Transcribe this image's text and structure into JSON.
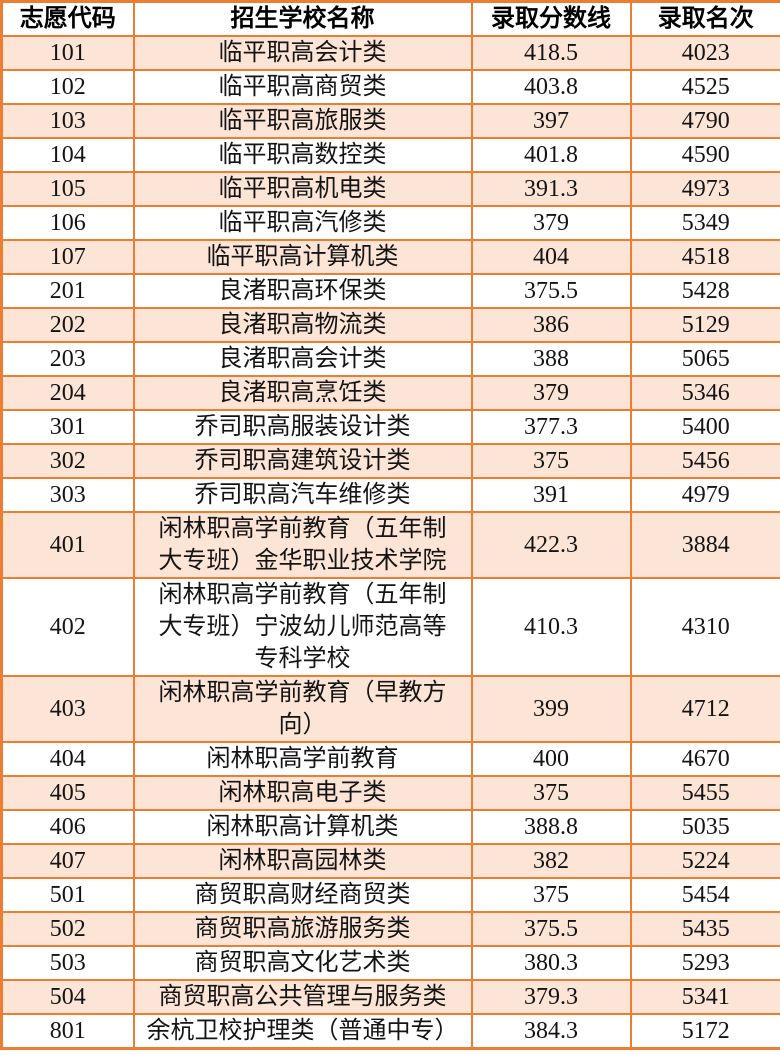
{
  "chart_data": {
    "type": "table",
    "headers": [
      "志愿代码",
      "招生学校名称",
      "录取分数线",
      "录取名次"
    ],
    "rows": [
      {
        "code": "101",
        "school": "临平职高会计类",
        "score": "418.5",
        "rank": "4023"
      },
      {
        "code": "102",
        "school": "临平职高商贸类",
        "score": "403.8",
        "rank": "4525"
      },
      {
        "code": "103",
        "school": "临平职高旅服类",
        "score": "397",
        "rank": "4790"
      },
      {
        "code": "104",
        "school": "临平职高数控类",
        "score": "401.8",
        "rank": "4590"
      },
      {
        "code": "105",
        "school": "临平职高机电类",
        "score": "391.3",
        "rank": "4973"
      },
      {
        "code": "106",
        "school": "临平职高汽修类",
        "score": "379",
        "rank": "5349"
      },
      {
        "code": "107",
        "school": "临平职高计算机类",
        "score": "404",
        "rank": "4518"
      },
      {
        "code": "201",
        "school": "良渚职高环保类",
        "score": "375.5",
        "rank": "5428"
      },
      {
        "code": "202",
        "school": "良渚职高物流类",
        "score": "386",
        "rank": "5129"
      },
      {
        "code": "203",
        "school": "良渚职高会计类",
        "score": "388",
        "rank": "5065"
      },
      {
        "code": "204",
        "school": "良渚职高烹饪类",
        "score": "379",
        "rank": "5346"
      },
      {
        "code": "301",
        "school": "乔司职高服装设计类",
        "score": "377.3",
        "rank": "5400"
      },
      {
        "code": "302",
        "school": "乔司职高建筑设计类",
        "score": "375",
        "rank": "5456"
      },
      {
        "code": "303",
        "school": "乔司职高汽车维修类",
        "score": "391",
        "rank": "4979"
      },
      {
        "code": "401",
        "school": "闲林职高学前教育（五年制\n大专班）金华职业技术学院",
        "score": "422.3",
        "rank": "3884"
      },
      {
        "code": "402",
        "school": "闲林职高学前教育（五年制\n大专班）宁波幼儿师范高等\n专科学校",
        "score": "410.3",
        "rank": "4310"
      },
      {
        "code": "403",
        "school": "闲林职高学前教育（早教方\n向）",
        "score": "399",
        "rank": "4712"
      },
      {
        "code": "404",
        "school": "闲林职高学前教育",
        "score": "400",
        "rank": "4670"
      },
      {
        "code": "405",
        "school": "闲林职高电子类",
        "score": "375",
        "rank": "5455"
      },
      {
        "code": "406",
        "school": "闲林职高计算机类",
        "score": "388.8",
        "rank": "5035"
      },
      {
        "code": "407",
        "school": "闲林职高园林类",
        "score": "382",
        "rank": "5224"
      },
      {
        "code": "501",
        "school": "商贸职高财经商贸类",
        "score": "375",
        "rank": "5454"
      },
      {
        "code": "502",
        "school": "商贸职高旅游服务类",
        "score": "375.5",
        "rank": "5435"
      },
      {
        "code": "503",
        "school": "商贸职高文化艺术类",
        "score": "380.3",
        "rank": "5293"
      },
      {
        "code": "504",
        "school": "商贸职高公共管理与服务类",
        "score": "379.3",
        "rank": "5341"
      },
      {
        "code": "801",
        "school": "余杭卫校护理类（普通中专）",
        "score": "384.3",
        "rank": "5172"
      }
    ]
  },
  "colors": {
    "border_orange": "#ED7D31",
    "stripe_fill": "#FCE4D6",
    "header_background": "#FFFFFF",
    "text": "#000000"
  }
}
